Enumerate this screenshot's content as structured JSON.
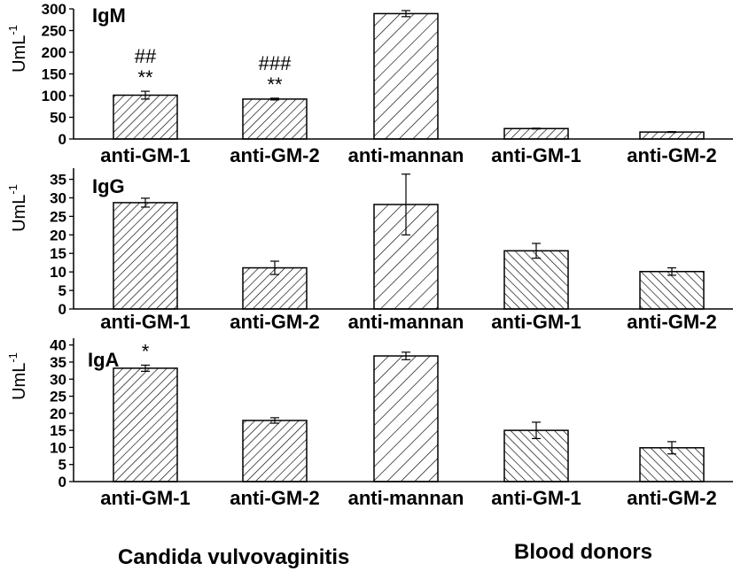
{
  "figure": {
    "group_labels": [
      "Candida vulvovaginitis",
      "Blood donors"
    ]
  },
  "chart_data": [
    {
      "type": "bar",
      "title": "IgM",
      "ylabel": "UmL",
      "ylabel_superscript": "-1",
      "ylim": [
        0,
        300
      ],
      "yticks": [
        0,
        50,
        100,
        150,
        200,
        250,
        300
      ],
      "categories": [
        "anti-GM-1",
        "anti-GM-2",
        "anti-mannan",
        "anti-GM-1",
        "anti-GM-2"
      ],
      "values": [
        101,
        92,
        289,
        24,
        16
      ],
      "errors": [
        9,
        2,
        7,
        1,
        1
      ],
      "patterns": [
        "dense",
        "dense",
        "sparse",
        "dense",
        "dense"
      ],
      "annotations": [
        {
          "index": 0,
          "lines": [
            "##",
            "**"
          ]
        },
        {
          "index": 1,
          "lines": [
            "###",
            "**"
          ]
        }
      ]
    },
    {
      "type": "bar",
      "title": "IgG",
      "ylabel": "UmL",
      "ylabel_superscript": "-1",
      "ylim": [
        0,
        38
      ],
      "yticks": [
        0,
        5,
        10,
        15,
        20,
        25,
        30,
        35
      ],
      "categories": [
        "anti-GM-1",
        "anti-GM-2",
        "anti-mannan",
        "anti-GM-1",
        "anti-GM-2"
      ],
      "values": [
        28.7,
        11.1,
        28.2,
        15.7,
        10.1
      ],
      "errors": [
        1.2,
        1.8,
        8.2,
        2.0,
        1.0
      ],
      "patterns": [
        "dense",
        "dense",
        "sparse",
        "back",
        "back"
      ],
      "annotations": []
    },
    {
      "type": "bar",
      "title": "IgA",
      "ylabel": "UmL",
      "ylabel_superscript": "-1",
      "ylim": [
        0,
        42
      ],
      "yticks": [
        0,
        5,
        10,
        15,
        20,
        25,
        30,
        35,
        40
      ],
      "categories": [
        "anti-GM-1",
        "anti-GM-2",
        "anti-mannan",
        "anti-GM-1",
        "anti-GM-2"
      ],
      "values": [
        33.2,
        17.9,
        36.8,
        15.0,
        9.9
      ],
      "errors": [
        0.9,
        0.8,
        1.1,
        2.4,
        1.8
      ],
      "patterns": [
        "dense",
        "dense",
        "sparse",
        "back",
        "back"
      ],
      "annotations": [
        {
          "index": 0,
          "lines": [
            "*"
          ]
        }
      ]
    }
  ]
}
